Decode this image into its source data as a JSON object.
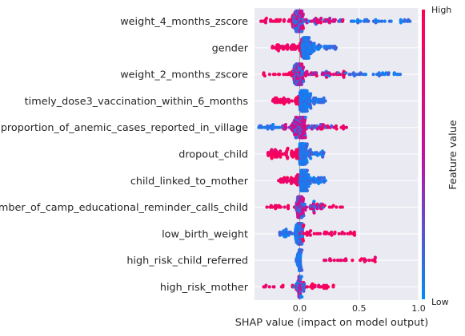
{
  "chart_data": {
    "type": "scatter",
    "subtype": "shap-beeswarm",
    "title": "",
    "xlabel": "SHAP value (impact on model output)",
    "ylabel": "",
    "xlim": [
      -0.38,
      1.0
    ],
    "xticks": [
      0.0,
      0.5,
      1.0
    ],
    "xtick_labels": [
      "0.0",
      "0.5",
      "1.0"
    ],
    "grid": true,
    "features": [
      {
        "name": "weight_4_months_zscore",
        "min": -0.35,
        "max": 0.93,
        "high_range": [
          -0.35,
          0.38
        ],
        "low_range": [
          -0.05,
          0.93
        ],
        "mix_range": [
          0.0,
          0.32
        ],
        "peak": -0.01,
        "spread": 0.045,
        "count": 230
      },
      {
        "name": "gender",
        "min": -0.23,
        "max": 0.31,
        "high_range": [
          -0.23,
          0.02
        ],
        "low_range": [
          0.02,
          0.31
        ],
        "mix_range": [
          0.0,
          0.0
        ],
        "peak": 0.05,
        "spread": 0.05,
        "count": 200
      },
      {
        "name": "weight_2_months_zscore",
        "min": -0.31,
        "max": 0.9,
        "high_range": [
          -0.31,
          0.38
        ],
        "low_range": [
          -0.05,
          0.9
        ],
        "mix_range": [
          0.0,
          0.3
        ],
        "peak": -0.01,
        "spread": 0.045,
        "count": 230
      },
      {
        "name": "timely_dose3_vaccination_within_6_months",
        "min": -0.23,
        "max": 0.22,
        "high_range": [
          -0.23,
          0.0
        ],
        "low_range": [
          0.0,
          0.22
        ],
        "mix_range": [
          0.0,
          0.0
        ],
        "peak": 0.03,
        "spread": 0.05,
        "count": 200
      },
      {
        "name": "proportion_of_anemic_cases_reported_in_village",
        "min": -0.36,
        "max": 0.4,
        "high_range": [
          -0.15,
          0.4
        ],
        "low_range": [
          -0.36,
          0.3
        ],
        "mix_range": [
          -0.15,
          0.3
        ],
        "peak": 0.0,
        "spread": 0.06,
        "count": 210
      },
      {
        "name": "dropout_child",
        "min": -0.27,
        "max": 0.22,
        "high_range": [
          -0.27,
          0.0
        ],
        "low_range": [
          0.0,
          0.22
        ],
        "mix_range": [
          0.0,
          0.0
        ],
        "peak": 0.03,
        "spread": 0.05,
        "count": 190
      },
      {
        "name": "child_linked_to_mother",
        "min": -0.18,
        "max": 0.22,
        "high_range": [
          -0.18,
          0.0
        ],
        "low_range": [
          0.0,
          0.22
        ],
        "mix_range": [
          0.0,
          0.0
        ],
        "peak": 0.03,
        "spread": 0.05,
        "count": 180
      },
      {
        "name": "number_of_camp_educational_reminder_calls_child",
        "min": -0.3,
        "max": 0.36,
        "high_range": [
          -0.3,
          0.36
        ],
        "low_range": [
          -0.05,
          0.2
        ],
        "mix_range": [
          -0.05,
          0.28
        ],
        "peak": 0.0,
        "spread": 0.03,
        "count": 180
      },
      {
        "name": "low_birth_weight",
        "min": -0.17,
        "max": 0.47,
        "high_range": [
          0.0,
          0.47
        ],
        "low_range": [
          -0.17,
          0.03
        ],
        "mix_range": [
          0.0,
          0.0
        ],
        "peak": 0.0,
        "spread": 0.03,
        "count": 190
      },
      {
        "name": "high_risk_child_referred",
        "min": -0.03,
        "max": 0.65,
        "high_range": [
          0.2,
          0.65
        ],
        "low_range": [
          -0.03,
          0.02
        ],
        "mix_range": [
          0.0,
          0.0
        ],
        "peak": 0.0,
        "spread": 0.005,
        "count": 130
      },
      {
        "name": "high_risk_mother",
        "min": -0.31,
        "max": 0.3,
        "high_range": [
          -0.31,
          0.3
        ],
        "low_range": [
          -0.05,
          0.04
        ],
        "mix_range": [
          0.0,
          0.0
        ],
        "peak": 0.0,
        "spread": 0.01,
        "count": 170
      }
    ],
    "colorbar": {
      "label": "Feature value",
      "high_label": "High",
      "low_label": "Low",
      "high_color": "#ff0052",
      "low_color": "#008bfb"
    },
    "colors": {
      "plot_background": "#eaeaf2",
      "grid": "#ffffff",
      "zero_line": "#999999",
      "high": "#ff0052",
      "low": "#008bfb",
      "mid": "#c4119c"
    }
  }
}
